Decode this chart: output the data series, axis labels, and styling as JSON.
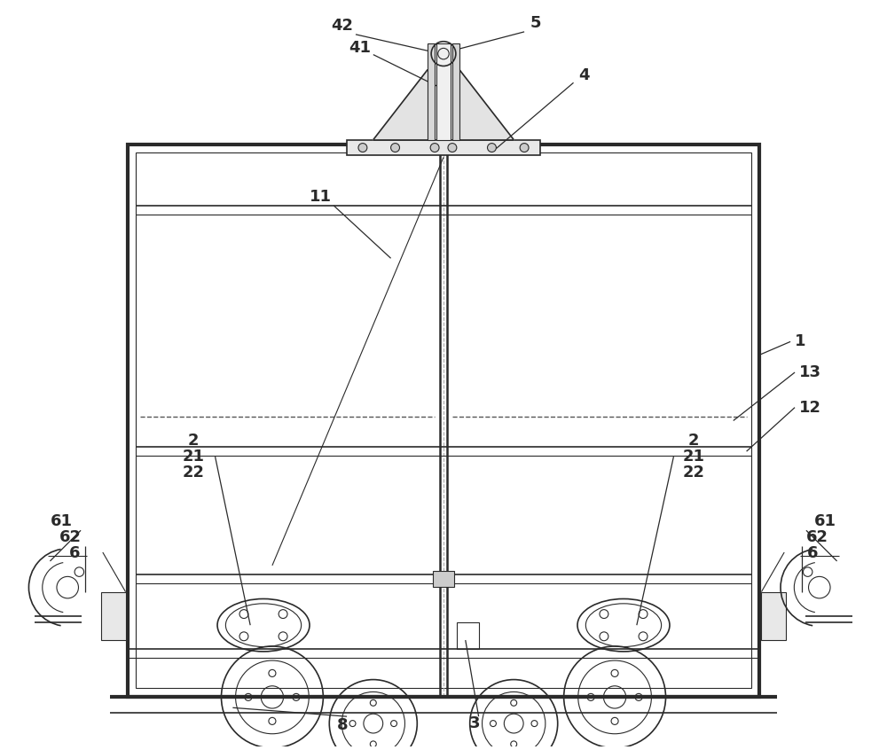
{
  "bg_color": "#ffffff",
  "line_color": "#2a2a2a",
  "dashed_color": "#555555",
  "fig_width": 10.0,
  "fig_height": 8.46
}
